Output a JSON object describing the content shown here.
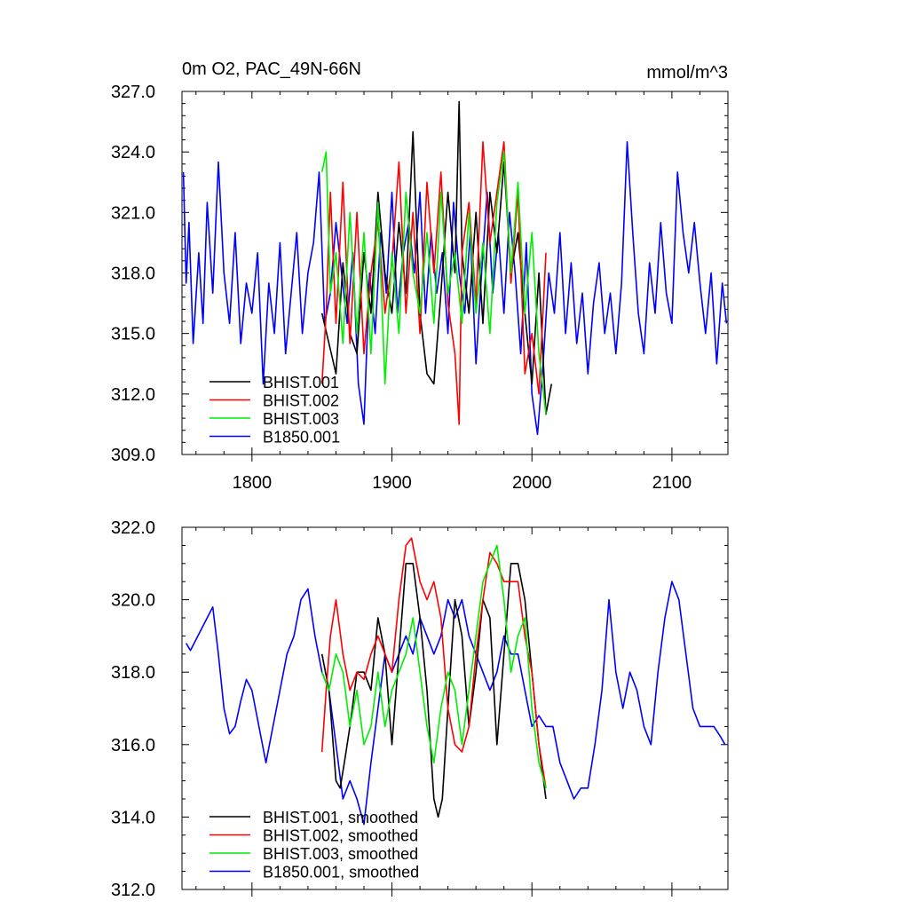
{
  "figure": {
    "title_left": "0m O2, PAC_49N-66N",
    "units": "mmol/m^3"
  },
  "chart_data": [
    {
      "type": "line",
      "title": "0m O2, PAC_49N-66N",
      "units": "mmol/m^3",
      "xlim": [
        1750,
        2140
      ],
      "ylim": [
        309.0,
        327.0
      ],
      "x_ticks": [
        1800,
        1900,
        2000,
        2100
      ],
      "x_tick_labels": [
        "1800",
        "1900",
        "2000",
        "2100"
      ],
      "y_ticks": [
        309.0,
        312.0,
        315.0,
        318.0,
        321.0,
        324.0,
        327.0
      ],
      "y_tick_labels": [
        "309.0",
        "312.0",
        "315.0",
        "318.0",
        "321.0",
        "324.0",
        "327.0"
      ],
      "grid": false,
      "legend_position": "bottom-left",
      "series": [
        {
          "name": "BHIST.001",
          "color": "#000000",
          "x": [
            1850,
            1855,
            1860,
            1865,
            1870,
            1875,
            1880,
            1885,
            1890,
            1895,
            1900,
            1905,
            1910,
            1915,
            1920,
            1925,
            1930,
            1935,
            1940,
            1945,
            1948,
            1950,
            1955,
            1960,
            1965,
            1970,
            1975,
            1980,
            1985,
            1990,
            1995,
            2000,
            2005,
            2010,
            2014
          ],
          "y": [
            316.0,
            314.5,
            313.0,
            318.5,
            315.0,
            314.0,
            319.0,
            316.0,
            322.0,
            318.0,
            316.0,
            320.5,
            317.0,
            325.0,
            316.0,
            313.0,
            312.5,
            317.0,
            322.0,
            318.0,
            326.5,
            319.0,
            316.0,
            321.0,
            315.5,
            322.0,
            319.0,
            323.5,
            318.0,
            320.0,
            316.0,
            312.5,
            318.0,
            311.0,
            312.5
          ]
        },
        {
          "name": "BHIST.002",
          "color": "#ff0000",
          "x": [
            1850,
            1853,
            1856,
            1860,
            1865,
            1870,
            1875,
            1880,
            1885,
            1890,
            1895,
            1900,
            1905,
            1910,
            1915,
            1920,
            1925,
            1930,
            1935,
            1940,
            1945,
            1948,
            1950,
            1955,
            1960,
            1965,
            1970,
            1975,
            1980,
            1985,
            1990,
            1995,
            2000,
            2005,
            2010
          ],
          "y": [
            312.5,
            316.0,
            322.0,
            315.5,
            322.5,
            314.5,
            321.0,
            314.0,
            318.0,
            320.5,
            316.0,
            318.5,
            323.5,
            316.0,
            321.0,
            315.0,
            322.5,
            318.0,
            323.0,
            316.5,
            314.0,
            310.5,
            319.0,
            321.5,
            316.5,
            324.5,
            319.5,
            322.0,
            324.5,
            317.5,
            322.0,
            313.0,
            315.0,
            312.0,
            319.0
          ]
        },
        {
          "name": "BHIST.003",
          "color": "#00ee00",
          "x": [
            1850,
            1853,
            1856,
            1860,
            1865,
            1870,
            1875,
            1880,
            1885,
            1890,
            1895,
            1900,
            1905,
            1910,
            1915,
            1920,
            1925,
            1930,
            1935,
            1940,
            1945,
            1950,
            1955,
            1960,
            1965,
            1970,
            1975,
            1980,
            1985,
            1990,
            1995,
            2000,
            2005,
            2010
          ],
          "y": [
            323.0,
            324.0,
            317.0,
            319.0,
            314.5,
            321.0,
            315.0,
            320.0,
            314.0,
            321.5,
            312.5,
            319.0,
            315.0,
            322.0,
            318.0,
            316.0,
            320.0,
            315.5,
            322.0,
            317.0,
            319.0,
            315.5,
            321.0,
            316.0,
            319.5,
            315.0,
            321.5,
            324.0,
            318.0,
            322.5,
            316.0,
            320.0,
            314.0,
            311.0
          ]
        },
        {
          "name": "B1850.001",
          "color": "#0000ff",
          "x": [
            1751,
            1753,
            1755,
            1758,
            1762,
            1765,
            1768,
            1772,
            1776,
            1780,
            1784,
            1788,
            1792,
            1796,
            1800,
            1804,
            1808,
            1812,
            1816,
            1820,
            1824,
            1828,
            1832,
            1836,
            1840,
            1844,
            1848,
            1852,
            1856,
            1860,
            1864,
            1868,
            1872,
            1876,
            1880,
            1884,
            1888,
            1892,
            1896,
            1900,
            1904,
            1908,
            1912,
            1916,
            1920,
            1924,
            1928,
            1932,
            1936,
            1940,
            1944,
            1948,
            1952,
            1956,
            1960,
            1964,
            1968,
            1972,
            1976,
            1980,
            1984,
            1988,
            1992,
            1996,
            2000,
            2004,
            2008,
            2012,
            2016,
            2020,
            2024,
            2028,
            2032,
            2036,
            2040,
            2044,
            2048,
            2052,
            2056,
            2060,
            2064,
            2068,
            2072,
            2076,
            2080,
            2084,
            2088,
            2092,
            2096,
            2100,
            2104,
            2108,
            2112,
            2116,
            2120,
            2124,
            2128,
            2132,
            2136,
            2139
          ],
          "y": [
            323.0,
            317.5,
            320.5,
            314.5,
            319.0,
            315.5,
            321.5,
            317.0,
            323.5,
            318.0,
            315.5,
            320.0,
            314.5,
            317.5,
            316.0,
            319.0,
            312.5,
            317.5,
            315.0,
            319.5,
            314.0,
            317.0,
            320.0,
            315.0,
            318.0,
            319.5,
            323.0,
            315.5,
            317.0,
            320.5,
            318.0,
            315.5,
            319.0,
            312.5,
            310.5,
            318.0,
            315.0,
            320.0,
            317.0,
            322.0,
            316.0,
            319.0,
            320.5,
            318.0,
            322.0,
            316.0,
            320.0,
            317.0,
            319.0,
            315.0,
            321.5,
            318.0,
            316.0,
            320.0,
            313.5,
            318.0,
            322.0,
            317.0,
            320.0,
            316.0,
            321.0,
            318.0,
            314.0,
            319.5,
            312.0,
            310.0,
            313.5,
            318.0,
            316.0,
            320.0,
            315.0,
            318.5,
            314.5,
            317.0,
            313.0,
            316.5,
            318.5,
            315.0,
            317.0,
            314.0,
            317.5,
            324.5,
            320.0,
            316.0,
            314.0,
            318.5,
            316.0,
            320.5,
            317.0,
            315.5,
            323.0,
            320.0,
            318.0,
            320.5,
            317.5,
            315.0,
            318.0,
            313.5,
            317.5,
            315.5
          ]
        }
      ]
    },
    {
      "type": "line",
      "xlim": [
        1750,
        2140
      ],
      "ylim": [
        312.0,
        322.0
      ],
      "x_ticks": [
        1800,
        1900,
        2000,
        2100
      ],
      "y_ticks": [
        312.0,
        314.0,
        316.0,
        318.0,
        320.0,
        322.0
      ],
      "y_tick_labels": [
        "312.0",
        "314.0",
        "316.0",
        "318.0",
        "320.0",
        "322.0"
      ],
      "grid": false,
      "legend_position": "bottom-left",
      "series": [
        {
          "name": "BHIST.001, smoothed",
          "color": "#000000",
          "x": [
            1850,
            1855,
            1860,
            1863,
            1866,
            1870,
            1875,
            1880,
            1885,
            1890,
            1895,
            1900,
            1905,
            1910,
            1915,
            1920,
            1925,
            1930,
            1933,
            1936,
            1940,
            1945,
            1950,
            1955,
            1960,
            1965,
            1970,
            1975,
            1980,
            1985,
            1990,
            1995,
            2000,
            2005,
            2010
          ],
          "y": [
            318.5,
            317.5,
            315.0,
            314.8,
            315.5,
            316.5,
            318.0,
            318.0,
            317.5,
            319.5,
            318.5,
            316.0,
            318.5,
            321.0,
            321.0,
            319.5,
            317.5,
            314.5,
            314.0,
            314.5,
            317.0,
            320.0,
            319.0,
            316.5,
            318.0,
            320.0,
            319.5,
            316.0,
            318.5,
            321.0,
            321.0,
            320.0,
            318.0,
            316.0,
            314.5
          ]
        },
        {
          "name": "BHIST.002, smoothed",
          "color": "#ff0000",
          "x": [
            1850,
            1853,
            1856,
            1860,
            1865,
            1870,
            1875,
            1880,
            1885,
            1890,
            1895,
            1900,
            1905,
            1910,
            1914,
            1920,
            1925,
            1930,
            1935,
            1940,
            1945,
            1950,
            1955,
            1960,
            1965,
            1970,
            1975,
            1980,
            1985,
            1990,
            1995,
            2000,
            2005,
            2010
          ],
          "y": [
            315.8,
            317.5,
            319.0,
            320.0,
            318.5,
            317.5,
            318.0,
            317.8,
            318.5,
            319.0,
            318.5,
            318.0,
            320.0,
            321.5,
            321.7,
            320.5,
            320.0,
            320.5,
            319.5,
            317.0,
            316.0,
            315.8,
            316.5,
            318.5,
            320.0,
            321.3,
            321.0,
            320.5,
            320.5,
            320.5,
            319.0,
            318.0,
            316.0,
            314.8
          ]
        },
        {
          "name": "BHIST.003, smoothed",
          "color": "#00ee00",
          "x": [
            1850,
            1855,
            1860,
            1865,
            1870,
            1875,
            1880,
            1885,
            1890,
            1895,
            1900,
            1905,
            1910,
            1915,
            1920,
            1925,
            1930,
            1935,
            1940,
            1945,
            1950,
            1955,
            1960,
            1965,
            1970,
            1975,
            1980,
            1985,
            1990,
            1995,
            2000,
            2005,
            2010
          ],
          "y": [
            318.0,
            317.5,
            318.5,
            318.0,
            316.5,
            317.5,
            316.0,
            316.5,
            318.0,
            316.5,
            317.5,
            318.0,
            318.5,
            319.5,
            318.0,
            316.5,
            315.5,
            317.0,
            318.0,
            317.5,
            316.0,
            317.5,
            319.0,
            320.5,
            321.0,
            321.5,
            320.0,
            318.0,
            319.0,
            319.5,
            317.0,
            315.5,
            314.8
          ]
        },
        {
          "name": "B1850.001, smoothed",
          "color": "#0000ff",
          "x": [
            1753,
            1756,
            1760,
            1764,
            1768,
            1772,
            1776,
            1780,
            1784,
            1788,
            1792,
            1796,
            1800,
            1805,
            1810,
            1815,
            1820,
            1825,
            1830,
            1835,
            1840,
            1845,
            1850,
            1855,
            1860,
            1865,
            1870,
            1875,
            1880,
            1885,
            1890,
            1895,
            1900,
            1905,
            1910,
            1915,
            1920,
            1925,
            1930,
            1935,
            1940,
            1945,
            1950,
            1955,
            1960,
            1965,
            1970,
            1975,
            1980,
            1985,
            1990,
            1995,
            2000,
            2005,
            2010,
            2015,
            2020,
            2025,
            2030,
            2035,
            2040,
            2045,
            2050,
            2055,
            2060,
            2065,
            2070,
            2075,
            2080,
            2085,
            2090,
            2095,
            2100,
            2105,
            2110,
            2115,
            2120,
            2125,
            2130,
            2135,
            2138
          ],
          "y": [
            318.8,
            318.6,
            318.9,
            319.2,
            319.5,
            319.8,
            318.5,
            317.0,
            316.3,
            316.5,
            317.2,
            317.8,
            317.5,
            316.5,
            315.5,
            316.5,
            317.5,
            318.5,
            319.0,
            320.0,
            320.3,
            319.0,
            318.0,
            317.5,
            316.0,
            314.5,
            315.0,
            314.5,
            313.8,
            315.5,
            317.0,
            318.5,
            318.0,
            318.5,
            319.0,
            318.5,
            319.5,
            319.0,
            318.5,
            319.0,
            320.0,
            319.5,
            320.0,
            319.0,
            318.5,
            318.0,
            317.5,
            318.0,
            319.0,
            318.5,
            318.5,
            317.5,
            316.5,
            316.8,
            316.5,
            316.5,
            315.5,
            315.0,
            314.5,
            314.8,
            314.8,
            316.0,
            317.5,
            320.0,
            318.0,
            317.0,
            318.0,
            317.5,
            316.5,
            316.0,
            318.0,
            319.5,
            320.5,
            320.0,
            318.5,
            317.0,
            316.5,
            316.5,
            316.5,
            316.2,
            316.0
          ]
        }
      ]
    }
  ]
}
